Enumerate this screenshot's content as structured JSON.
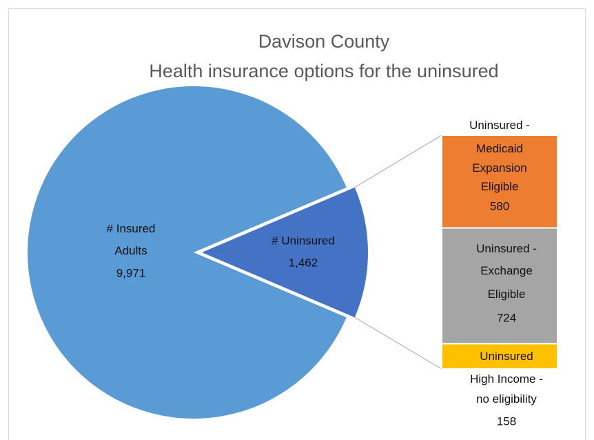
{
  "chart_data": {
    "type": "pie-of-bar",
    "title": "Davison County",
    "subtitle": "Health insurance options for the uninsured",
    "categories": [
      "# Insured Adults",
      "# Uninsured"
    ],
    "values": [
      9971,
      1462
    ],
    "value_labels": [
      "9,971",
      "1,462"
    ],
    "colors": [
      "#5B9BD5",
      "#4472C4"
    ],
    "breakdown": {
      "categories": [
        "Uninsured - Medicaid Expansion Eligible",
        "Uninsured - Exchange Eligible",
        "Uninsured High Income - no eligibility"
      ],
      "values": [
        580,
        724,
        158
      ],
      "colors": [
        "#ED7D31",
        "#A5A5A5",
        "#FFC000"
      ]
    }
  }
}
